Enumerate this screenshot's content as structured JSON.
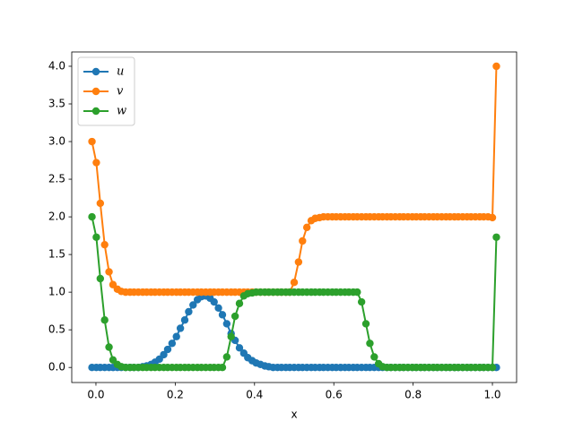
{
  "chart_data": {
    "type": "line",
    "xlabel": "x",
    "x": [
      -0.01,
      0.001,
      0.011,
      0.022,
      0.033,
      0.043,
      0.054,
      0.064,
      0.075,
      0.086,
      0.096,
      0.107,
      0.118,
      0.128,
      0.139,
      0.149,
      0.16,
      0.171,
      0.181,
      0.192,
      0.203,
      0.213,
      0.224,
      0.234,
      0.245,
      0.256,
      0.266,
      0.277,
      0.288,
      0.298,
      0.309,
      0.319,
      0.33,
      0.341,
      0.351,
      0.362,
      0.373,
      0.383,
      0.394,
      0.404,
      0.415,
      0.426,
      0.436,
      0.447,
      0.458,
      0.468,
      0.479,
      0.489,
      0.5,
      0.511,
      0.521,
      0.532,
      0.543,
      0.553,
      0.564,
      0.574,
      0.585,
      0.596,
      0.606,
      0.617,
      0.628,
      0.638,
      0.649,
      0.659,
      0.67,
      0.681,
      0.691,
      0.702,
      0.713,
      0.723,
      0.734,
      0.744,
      0.755,
      0.766,
      0.776,
      0.787,
      0.798,
      0.808,
      0.819,
      0.829,
      0.84,
      0.851,
      0.861,
      0.872,
      0.883,
      0.893,
      0.904,
      0.914,
      0.925,
      0.936,
      0.946,
      0.957,
      0.968,
      0.978,
      0.989,
      1.0,
      1.01
    ],
    "series": [
      {
        "name": "u",
        "color": "#1f77b4",
        "values": [
          0,
          0,
          0,
          0,
          0,
          0,
          0,
          0,
          0,
          0,
          0,
          0,
          0.01,
          0.02,
          0.04,
          0.07,
          0.11,
          0.17,
          0.24,
          0.32,
          0.41,
          0.52,
          0.63,
          0.74,
          0.83,
          0.9,
          0.94,
          0.95,
          0.92,
          0.87,
          0.79,
          0.7,
          0.58,
          0.45,
          0.36,
          0.26,
          0.19,
          0.13,
          0.09,
          0.06,
          0.04,
          0.02,
          0.01,
          0,
          0,
          0,
          0,
          0,
          0,
          0,
          0,
          0,
          0,
          0,
          0,
          0,
          0,
          0,
          0,
          0,
          0,
          0,
          0,
          0,
          0,
          0,
          0,
          0,
          0,
          0,
          0,
          0,
          0,
          0,
          0,
          0,
          0,
          0,
          0,
          0,
          0,
          0,
          0,
          0,
          0,
          0,
          0,
          0,
          0,
          0,
          0,
          0,
          0,
          0,
          0,
          0,
          0
        ]
      },
      {
        "name": "v",
        "color": "#ff7f0e",
        "values": [
          3,
          2.72,
          2.18,
          1.63,
          1.27,
          1.1,
          1.04,
          1.01,
          1,
          1,
          1,
          1,
          1,
          1,
          1,
          1,
          1,
          1,
          1,
          1,
          1,
          1,
          1,
          1,
          1,
          1,
          1,
          1,
          1,
          1,
          1,
          1,
          1,
          1,
          1,
          1,
          1,
          1,
          1,
          1,
          1,
          1,
          1,
          1,
          1,
          1,
          1,
          1,
          1.13,
          1.4,
          1.68,
          1.86,
          1.95,
          1.98,
          1.99,
          2,
          2,
          2,
          2,
          2,
          2,
          2,
          2,
          2,
          2,
          2,
          2,
          2,
          2,
          2,
          2,
          2,
          2,
          2,
          2,
          2,
          2,
          2,
          2,
          2,
          2,
          2,
          2,
          2,
          2,
          2,
          2,
          2,
          2,
          2,
          2,
          2,
          2,
          2,
          2,
          1.99,
          4
        ]
      },
      {
        "name": "w",
        "color": "#2ca02c",
        "values": [
          2,
          1.73,
          1.18,
          0.63,
          0.27,
          0.1,
          0.04,
          0.01,
          0,
          0,
          0,
          0,
          0,
          0,
          0,
          0,
          0,
          0,
          0,
          0,
          0,
          0,
          0,
          0,
          0,
          0,
          0,
          0,
          0,
          0,
          0,
          0,
          0.14,
          0.41,
          0.68,
          0.85,
          0.95,
          0.98,
          0.99,
          1,
          1,
          1,
          1,
          1,
          1,
          1,
          1,
          1,
          1,
          1,
          1,
          1,
          1,
          1,
          1,
          1,
          1,
          1,
          1,
          1,
          1,
          1,
          1,
          1,
          0.87,
          0.58,
          0.32,
          0.14,
          0.05,
          0.01,
          0,
          0,
          0,
          0,
          0,
          0,
          0,
          0,
          0,
          0,
          0,
          0,
          0,
          0,
          0,
          0,
          0,
          0,
          0,
          0,
          0,
          0,
          0,
          0,
          0,
          0,
          1.73
        ]
      }
    ],
    "xlim": [
      -0.061,
      1.061
    ],
    "xticks": [
      {
        "value": 0,
        "label": "0.0"
      },
      {
        "value": 0.2,
        "label": "0.2"
      },
      {
        "value": 0.4,
        "label": "0.4"
      },
      {
        "value": 0.6,
        "label": "0.6"
      },
      {
        "value": 0.8,
        "label": "0.8"
      },
      {
        "value": 1,
        "label": "1.0"
      }
    ],
    "ylim": [
      -0.2,
      4.19
    ],
    "yticks": [
      {
        "value": 0,
        "label": "0.0"
      },
      {
        "value": 0.5,
        "label": "0.5"
      },
      {
        "value": 1,
        "label": "1.0"
      },
      {
        "value": 1.5,
        "label": "1.5"
      },
      {
        "value": 2,
        "label": "2.0"
      },
      {
        "value": 2.5,
        "label": "2.5"
      },
      {
        "value": 3,
        "label": "3.0"
      },
      {
        "value": 3.5,
        "label": "3.5"
      },
      {
        "value": 4,
        "label": "4.0"
      }
    ],
    "legend": "upper left",
    "grid": false
  }
}
